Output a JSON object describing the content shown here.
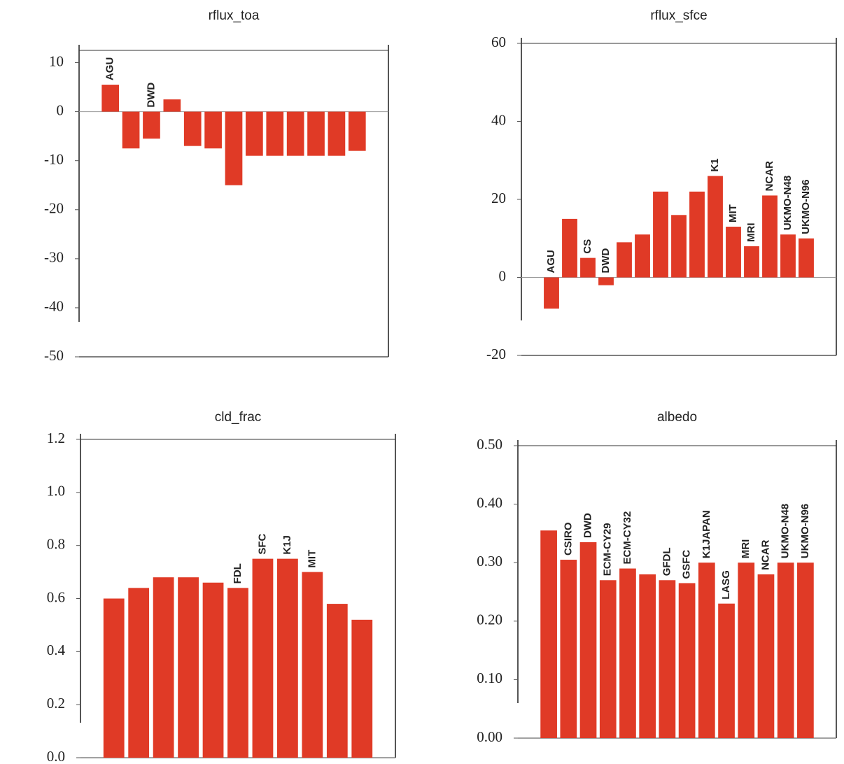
{
  "chart_data": [
    {
      "type": "bar",
      "title": "rflux_toa",
      "color": "#e03a26",
      "categories": [
        "AGU",
        null,
        "DWD",
        null,
        null,
        null,
        null,
        null,
        null,
        null,
        null,
        null,
        null
      ],
      "values": [
        5.5,
        -7.5,
        -5.5,
        2.5,
        -7,
        -7.5,
        -15,
        -9,
        -9,
        -9,
        -9,
        -9,
        -8
      ],
      "ylim": [
        -50,
        12.5
      ],
      "yticks": [
        -50,
        -40,
        -30,
        -20,
        -10,
        0,
        10
      ]
    },
    {
      "type": "bar",
      "title": "rflux_sfce",
      "color": "#e03a26",
      "categories": [
        "AGU",
        null,
        "CS",
        "DWD",
        null,
        null,
        null,
        null,
        null,
        "K1",
        "MIT",
        "MRI",
        "NCAR",
        "UKMO-N48",
        "UKMO-N96"
      ],
      "values": [
        -8,
        15,
        5,
        -2,
        9,
        11,
        22,
        16,
        22,
        26,
        13,
        8,
        21,
        11,
        10
      ],
      "ylim": [
        -20,
        60
      ],
      "yticks": [
        -20,
        0,
        20,
        40,
        60
      ]
    },
    {
      "type": "bar",
      "title": "cld_frac",
      "color": "#e03a26",
      "categories": [
        null,
        null,
        null,
        null,
        null,
        "FDL",
        "SFC",
        "K1J",
        "MIT",
        null,
        null
      ],
      "values": [
        0.6,
        0.64,
        0.68,
        0.68,
        0.66,
        0.64,
        0.75,
        0.75,
        0.7,
        0.58,
        0.52
      ],
      "ylim": [
        0,
        1.2
      ],
      "yticks": [
        {
          "value": 0,
          "label": "0.0"
        },
        0.2,
        0.4,
        0.6,
        0.8,
        {
          "value": 1,
          "label": "1.0"
        },
        1.2
      ]
    },
    {
      "type": "bar",
      "title": "albedo",
      "color": "#e03a26",
      "categories": [
        null,
        "CSIRO",
        "DWD",
        "ECM-CY29",
        "ECM-CY32",
        null,
        "GFDL",
        "GSFC",
        "K1JAPAN",
        "LASG",
        "MRI",
        "NCAR",
        "UKMO-N48",
        "UKMO-N96"
      ],
      "values": [
        0.355,
        0.305,
        0.335,
        0.27,
        0.29,
        0.28,
        0.27,
        0.265,
        0.3,
        0.23,
        0.3,
        0.28,
        0.3,
        0.3
      ],
      "ylim": [
        0,
        0.5
      ],
      "yticks": [
        {
          "value": 0,
          "label": "0.00"
        },
        {
          "value": 0.1,
          "label": "0.10"
        },
        {
          "value": 0.2,
          "label": "0.20"
        },
        {
          "value": 0.3,
          "label": "0.30"
        },
        {
          "value": 0.4,
          "label": "0.40"
        },
        {
          "value": 0.5,
          "label": "0.50"
        }
      ]
    }
  ]
}
